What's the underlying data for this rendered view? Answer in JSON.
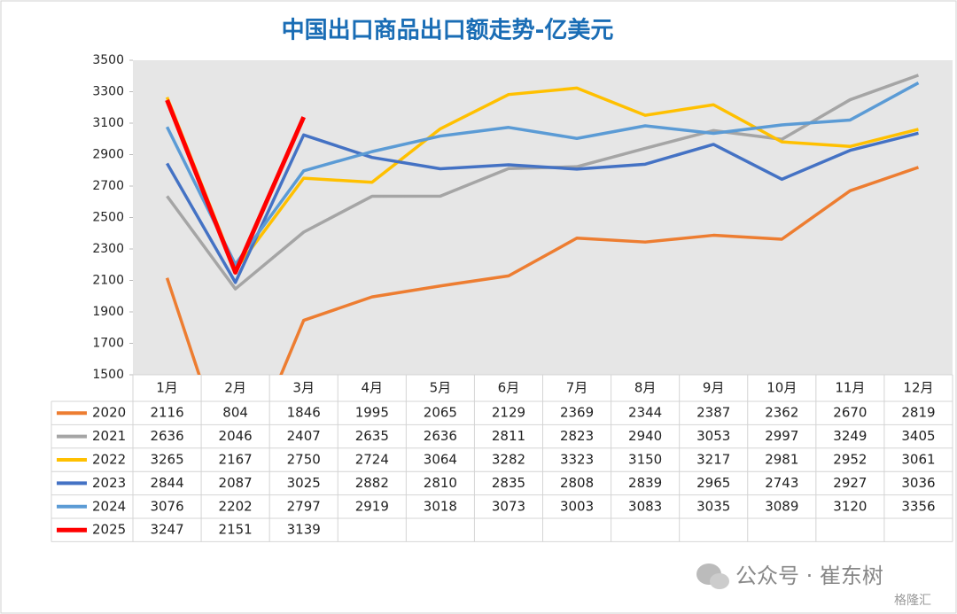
{
  "chart_data": {
    "type": "line",
    "title": "中国出口商品出口额走势-亿美元",
    "categories": [
      "1月",
      "2月",
      "3月",
      "4月",
      "5月",
      "6月",
      "7月",
      "8月",
      "9月",
      "10月",
      "11月",
      "12月"
    ],
    "series": [
      {
        "name": "2020",
        "color": "#ed7d31",
        "values": [
          2116,
          804,
          1846,
          1995,
          2065,
          2129,
          2369,
          2344,
          2387,
          2362,
          2670,
          2819
        ]
      },
      {
        "name": "2021",
        "color": "#a5a5a5",
        "values": [
          2636,
          2046,
          2407,
          2635,
          2636,
          2811,
          2823,
          2940,
          3053,
          2997,
          3249,
          3405
        ]
      },
      {
        "name": "2022",
        "color": "#ffc000",
        "values": [
          3265,
          2167,
          2750,
          2724,
          3064,
          3282,
          3323,
          3150,
          3217,
          2981,
          2952,
          3061
        ]
      },
      {
        "name": "2023",
        "color": "#4472c4",
        "values": [
          2844,
          2087,
          3025,
          2882,
          2810,
          2835,
          2808,
          2839,
          2965,
          2743,
          2927,
          3036
        ]
      },
      {
        "name": "2024",
        "color": "#5b9bd5",
        "values": [
          3076,
          2202,
          2797,
          2919,
          3018,
          3073,
          3003,
          3083,
          3035,
          3089,
          3120,
          3356
        ]
      },
      {
        "name": "2025",
        "color": "#ff0000",
        "values": [
          3247,
          2151,
          3139,
          null,
          null,
          null,
          null,
          null,
          null,
          null,
          null,
          null
        ]
      }
    ],
    "ylim": [
      1500,
      3500
    ],
    "yticks": [
      1500,
      1700,
      1900,
      2100,
      2300,
      2500,
      2700,
      2900,
      3100,
      3300,
      3500
    ],
    "grid": false,
    "watermark": "公众号 · 崔东树",
    "logo": "格隆汇"
  }
}
